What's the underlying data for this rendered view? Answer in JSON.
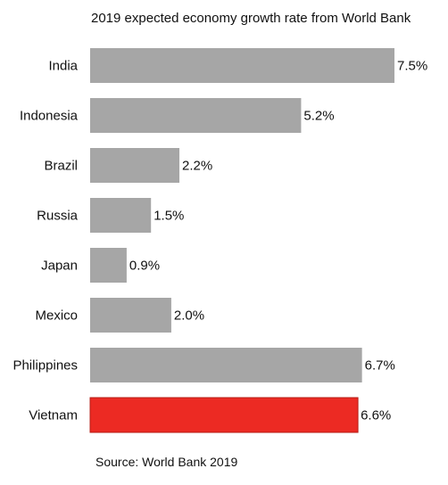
{
  "chart_data": {
    "type": "bar",
    "orientation": "horizontal",
    "title": "2019 expected economy growth rate from World Bank",
    "categories": [
      "India",
      "Indonesia",
      "Brazil",
      "Russia",
      "Japan",
      "Mexico",
      "Philippines",
      "Vietnam"
    ],
    "values": [
      7.5,
      5.2,
      2.2,
      1.5,
      0.9,
      2.0,
      6.7,
      6.6
    ],
    "value_labels": [
      "7.5%",
      "5.2%",
      "2.2%",
      "1.5%",
      "0.9%",
      "2.0%",
      "6.7%",
      "6.6%"
    ],
    "xlim": [
      0,
      7.5
    ],
    "grid": false,
    "legend": "none",
    "colors": {
      "default": "#a6a6a6",
      "highlight": "#ec2a23",
      "highlight_category": "Vietnam"
    }
  },
  "footer": {
    "source": "Source: World Bank 2019"
  }
}
